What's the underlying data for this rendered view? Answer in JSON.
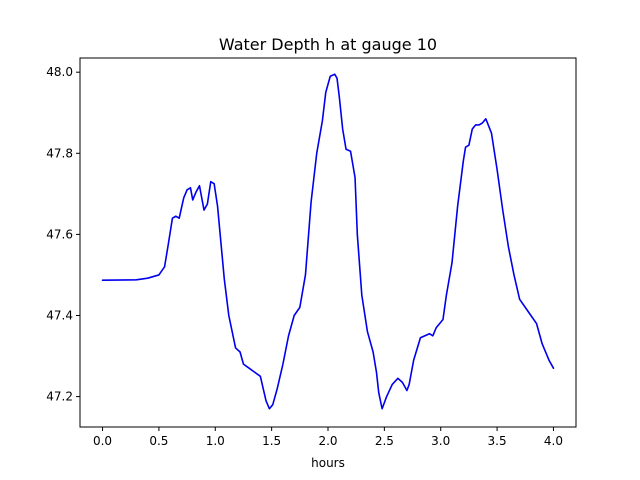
{
  "chart_data": {
    "type": "line",
    "title": "Water Depth h at gauge 10",
    "xlabel": "hours",
    "ylabel": "",
    "xlim": [
      -0.2,
      4.2
    ],
    "ylim": [
      47.125,
      48.035
    ],
    "xticks": [
      0.0,
      0.5,
      1.0,
      1.5,
      2.0,
      2.5,
      3.0,
      3.5,
      4.0
    ],
    "xtick_labels": [
      "0.0",
      "0.5",
      "1.0",
      "1.5",
      "2.0",
      "2.5",
      "3.0",
      "3.5",
      "4.0"
    ],
    "yticks": [
      47.2,
      47.4,
      47.6,
      47.8,
      48.0
    ],
    "ytick_labels": [
      "47.2",
      "47.4",
      "47.6",
      "47.8",
      "48.0"
    ],
    "grid": false,
    "colors": {
      "line": "#0000ee",
      "axes": "#000000",
      "background": "#ffffff"
    },
    "series": [
      {
        "x": [
          0.0,
          0.3,
          0.4,
          0.5,
          0.55,
          0.58,
          0.62,
          0.65,
          0.68,
          0.72,
          0.75,
          0.78,
          0.8,
          0.83,
          0.86,
          0.9,
          0.93,
          0.96,
          0.99,
          1.02,
          1.05,
          1.08,
          1.12,
          1.15,
          1.18,
          1.22,
          1.25,
          1.3,
          1.35,
          1.4,
          1.45,
          1.48,
          1.51,
          1.55,
          1.6,
          1.65,
          1.7,
          1.75,
          1.8,
          1.85,
          1.9,
          1.95,
          1.98,
          2.02,
          2.06,
          2.08,
          2.1,
          2.13,
          2.16,
          2.2,
          2.24,
          2.26,
          2.3,
          2.35,
          2.4,
          2.43,
          2.45,
          2.48,
          2.52,
          2.57,
          2.62,
          2.66,
          2.7,
          2.72,
          2.76,
          2.82,
          2.86,
          2.9,
          2.93,
          2.96,
          2.99,
          3.02,
          3.05,
          3.1,
          3.15,
          3.2,
          3.22,
          3.25,
          3.28,
          3.31,
          3.34,
          3.37,
          3.4,
          3.45,
          3.5,
          3.55,
          3.6,
          3.65,
          3.7,
          3.75,
          3.8,
          3.85,
          3.9,
          3.93,
          3.96,
          4.0
        ],
        "y": [
          47.487,
          47.488,
          47.492,
          47.5,
          47.52,
          47.57,
          47.64,
          47.645,
          47.64,
          47.69,
          47.71,
          47.715,
          47.685,
          47.705,
          47.72,
          47.66,
          47.675,
          47.73,
          47.725,
          47.67,
          47.58,
          47.49,
          47.4,
          47.36,
          47.32,
          47.31,
          47.28,
          47.27,
          47.26,
          47.25,
          47.19,
          47.17,
          47.18,
          47.22,
          47.28,
          47.35,
          47.4,
          47.42,
          47.5,
          47.68,
          47.8,
          47.88,
          47.95,
          47.99,
          47.995,
          47.985,
          47.94,
          47.86,
          47.81,
          47.805,
          47.74,
          47.6,
          47.45,
          47.36,
          47.31,
          47.26,
          47.21,
          47.17,
          47.2,
          47.23,
          47.245,
          47.235,
          47.215,
          47.23,
          47.29,
          47.345,
          47.35,
          47.355,
          47.35,
          47.37,
          47.38,
          47.39,
          47.45,
          47.53,
          47.67,
          47.78,
          47.815,
          47.82,
          47.86,
          47.87,
          47.87,
          47.875,
          47.885,
          47.85,
          47.76,
          47.66,
          47.57,
          47.5,
          47.44,
          47.42,
          47.4,
          47.38,
          47.33,
          47.31,
          47.29,
          47.27
        ]
      }
    ]
  }
}
